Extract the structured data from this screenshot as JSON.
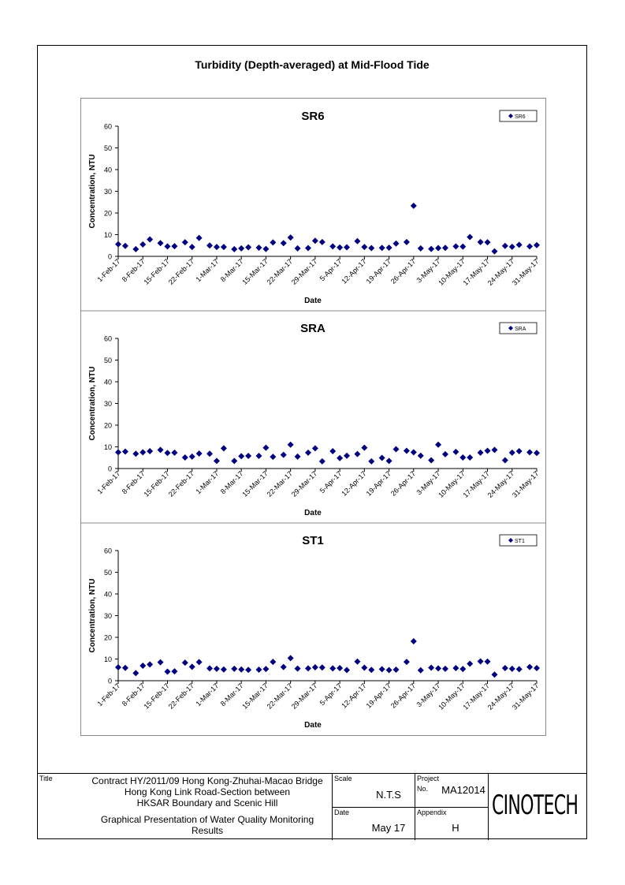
{
  "main_title": "Turbidity (Depth-averaged) at Mid-Flood Tide",
  "colors": {
    "marker": "#000080",
    "axis": "#000000",
    "panel_border": "#888888"
  },
  "x_tick_labels": [
    "1-Feb-17",
    "8-Feb-17",
    "15-Feb-17",
    "22-Feb-17",
    "1-Mar-17",
    "8-Mar-17",
    "15-Mar-17",
    "22-Mar-17",
    "29-Mar-17",
    "5-Apr-17",
    "12-Apr-17",
    "19-Apr-17",
    "26-Apr-17",
    "3-May-17",
    "10-May-17",
    "17-May-17",
    "24-May-17",
    "31-May-17"
  ],
  "chart_data": [
    {
      "type": "scatter",
      "title": "SR6",
      "xlabel": "Date",
      "ylabel": "Concentration, NTU",
      "ylim": [
        0,
        60
      ],
      "yticks": [
        0,
        10,
        20,
        30,
        40,
        50,
        60
      ],
      "xlim": [
        "2017-02-01",
        "2017-05-31"
      ],
      "legend": "top-right",
      "series": [
        {
          "name": "SR6",
          "x": [
            "2017-02-01",
            "2017-02-03",
            "2017-02-06",
            "2017-02-08",
            "2017-02-10",
            "2017-02-13",
            "2017-02-15",
            "2017-02-17",
            "2017-02-20",
            "2017-02-22",
            "2017-02-24",
            "2017-02-27",
            "2017-03-01",
            "2017-03-03",
            "2017-03-06",
            "2017-03-08",
            "2017-03-10",
            "2017-03-13",
            "2017-03-15",
            "2017-03-17",
            "2017-03-20",
            "2017-03-22",
            "2017-03-24",
            "2017-03-27",
            "2017-03-29",
            "2017-03-31",
            "2017-04-03",
            "2017-04-05",
            "2017-04-07",
            "2017-04-10",
            "2017-04-12",
            "2017-04-14",
            "2017-04-17",
            "2017-04-19",
            "2017-04-21",
            "2017-04-24",
            "2017-04-26",
            "2017-04-28",
            "2017-05-01",
            "2017-05-03",
            "2017-05-05",
            "2017-05-08",
            "2017-05-10",
            "2017-05-12",
            "2017-05-15",
            "2017-05-17",
            "2017-05-19",
            "2017-05-22",
            "2017-05-24",
            "2017-05-26",
            "2017-05-29",
            "2017-05-31"
          ],
          "values": [
            5.6,
            4.8,
            3.3,
            5.5,
            7.8,
            6.1,
            4.6,
            4.7,
            6.5,
            4.3,
            8.5,
            5.0,
            4.3,
            4.3,
            3.3,
            3.7,
            4.2,
            4.0,
            3.4,
            6.4,
            6.1,
            8.7,
            3.7,
            3.8,
            7.2,
            6.6,
            4.6,
            4.1,
            4.2,
            7.0,
            4.3,
            3.8,
            3.9,
            4.0,
            5.9,
            6.6,
            23.3,
            3.7,
            3.4,
            3.8,
            3.9,
            4.6,
            4.5,
            8.9,
            6.6,
            6.5,
            2.3,
            4.8,
            4.4,
            5.3,
            4.6,
            5.2
          ]
        }
      ]
    },
    {
      "type": "scatter",
      "title": "SRA",
      "xlabel": "Date",
      "ylabel": "Concentration, NTU",
      "ylim": [
        0,
        60
      ],
      "yticks": [
        0,
        10,
        20,
        30,
        40,
        50,
        60
      ],
      "xlim": [
        "2017-02-01",
        "2017-05-31"
      ],
      "legend": "top-right",
      "series": [
        {
          "name": "SRA",
          "x": [
            "2017-02-01",
            "2017-02-03",
            "2017-02-06",
            "2017-02-08",
            "2017-02-10",
            "2017-02-13",
            "2017-02-15",
            "2017-02-17",
            "2017-02-20",
            "2017-02-22",
            "2017-02-24",
            "2017-02-27",
            "2017-03-01",
            "2017-03-03",
            "2017-03-06",
            "2017-03-08",
            "2017-03-10",
            "2017-03-13",
            "2017-03-15",
            "2017-03-17",
            "2017-03-20",
            "2017-03-22",
            "2017-03-24",
            "2017-03-27",
            "2017-03-29",
            "2017-03-31",
            "2017-04-03",
            "2017-04-05",
            "2017-04-07",
            "2017-04-10",
            "2017-04-12",
            "2017-04-14",
            "2017-04-17",
            "2017-04-19",
            "2017-04-21",
            "2017-04-24",
            "2017-04-26",
            "2017-04-28",
            "2017-05-01",
            "2017-05-03",
            "2017-05-05",
            "2017-05-08",
            "2017-05-10",
            "2017-05-12",
            "2017-05-15",
            "2017-05-17",
            "2017-05-19",
            "2017-05-22",
            "2017-05-24",
            "2017-05-26",
            "2017-05-29",
            "2017-05-31"
          ],
          "values": [
            7.5,
            7.8,
            6.8,
            7.5,
            8.0,
            8.6,
            7.2,
            7.3,
            5.1,
            5.5,
            6.9,
            6.8,
            3.5,
            9.3,
            3.5,
            5.7,
            5.8,
            5.8,
            9.6,
            5.4,
            6.3,
            11.0,
            5.5,
            7.3,
            9.3,
            3.3,
            8.0,
            4.8,
            5.9,
            6.7,
            9.6,
            3.3,
            4.9,
            3.5,
            8.9,
            8.2,
            7.5,
            5.9,
            3.8,
            11.0,
            6.6,
            7.7,
            5.1,
            5.1,
            7.3,
            8.2,
            8.6,
            3.8,
            7.3,
            8.0,
            7.5,
            7.2
          ]
        }
      ]
    },
    {
      "type": "scatter",
      "title": "ST1",
      "xlabel": "Date",
      "ylabel": "Concentration, NTU",
      "ylim": [
        0,
        60
      ],
      "yticks": [
        0,
        10,
        20,
        30,
        40,
        50,
        60
      ],
      "xlim": [
        "2017-02-01",
        "2017-05-31"
      ],
      "legend": "top-right",
      "series": [
        {
          "name": "ST1",
          "x": [
            "2017-02-01",
            "2017-02-03",
            "2017-02-06",
            "2017-02-08",
            "2017-02-10",
            "2017-02-13",
            "2017-02-15",
            "2017-02-17",
            "2017-02-20",
            "2017-02-22",
            "2017-02-24",
            "2017-02-27",
            "2017-03-01",
            "2017-03-03",
            "2017-03-06",
            "2017-03-08",
            "2017-03-10",
            "2017-03-13",
            "2017-03-15",
            "2017-03-17",
            "2017-03-20",
            "2017-03-22",
            "2017-03-24",
            "2017-03-27",
            "2017-03-29",
            "2017-03-31",
            "2017-04-03",
            "2017-04-05",
            "2017-04-07",
            "2017-04-10",
            "2017-04-12",
            "2017-04-14",
            "2017-04-17",
            "2017-04-19",
            "2017-04-21",
            "2017-04-24",
            "2017-04-26",
            "2017-04-28",
            "2017-05-01",
            "2017-05-03",
            "2017-05-05",
            "2017-05-08",
            "2017-05-10",
            "2017-05-12",
            "2017-05-15",
            "2017-05-17",
            "2017-05-19",
            "2017-05-22",
            "2017-05-24",
            "2017-05-26",
            "2017-05-29",
            "2017-05-31"
          ],
          "values": [
            6.2,
            5.9,
            3.5,
            6.9,
            7.5,
            8.5,
            4.2,
            4.3,
            8.3,
            6.4,
            8.6,
            5.7,
            5.5,
            5.2,
            5.5,
            5.2,
            5.0,
            5.1,
            5.4,
            8.7,
            6.3,
            10.4,
            5.6,
            5.7,
            6.2,
            6.1,
            5.7,
            5.8,
            4.9,
            8.8,
            6.0,
            5.0,
            5.3,
            4.9,
            5.1,
            8.7,
            18.2,
            4.8,
            6.0,
            5.7,
            5.5,
            5.8,
            5.4,
            7.8,
            8.9,
            8.8,
            2.8,
            5.8,
            5.5,
            5.3,
            6.3,
            5.8
          ]
        }
      ]
    }
  ],
  "titleblock": {
    "title_label": "Title",
    "title_line1": "Contract HY/2011/09 Hong Kong-Zhuhai-Macao Bridge",
    "title_line2": "Hong Kong Link Road-Section between",
    "title_line3": "HKSAR Boundary and Scenic Hill",
    "title_line4": "Graphical Presentation of Water Quality Monitoring",
    "title_line5": "Results",
    "scale_label": "Scale",
    "scale_value": "N.T.S",
    "date_label": "Date",
    "date_value": "May 17",
    "project_label": "Project",
    "no_label": "No.",
    "project_no": "MA12014",
    "appendix_label": "Appendix",
    "appendix_value": "H",
    "logo_text": "CINOTECH"
  }
}
